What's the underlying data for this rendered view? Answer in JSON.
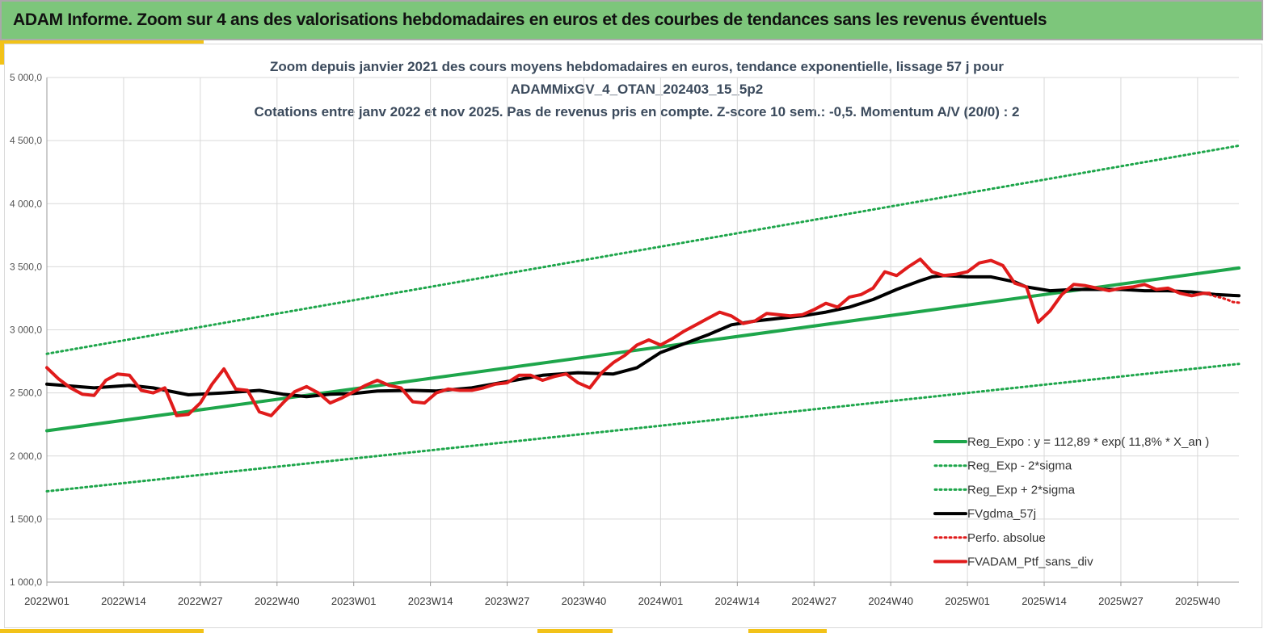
{
  "banner": {
    "title": "ADAM Informe. Zoom sur 4 ans des valorisations hebdomadaires en euros et des courbes de tendances sans les revenus éventuels",
    "background": "#7dc67b",
    "accent": "#f2c218"
  },
  "chart_data": {
    "type": "line",
    "title_lines": [
      "Zoom depuis janvier 2021 des cours moyens hebdomadaires  en euros, tendance exponentielle, lissage 57 j pour",
      "ADAMMixGV_4_OTAN_202403_15_5p2",
      "Cotations  entre janv 2022 et nov 2025. Pas de revenus pris en compte. Z-score 10 sem.: -0,5. Momentum A/V (20/0) : 2"
    ],
    "xlabel": "",
    "ylabel": "",
    "ylim": [
      1000,
      5000
    ],
    "yticks": [
      1000,
      1500,
      2000,
      2500,
      3000,
      3500,
      4000,
      4500,
      5000
    ],
    "ytick_labels": [
      "1 000,0",
      "1 500,0",
      "2 000,0",
      "2 500,0",
      "3 000,0",
      "3 500,0",
      "4 000,0",
      "4 500,0",
      "5 000,0"
    ],
    "x_range_weeks": [
      0,
      202
    ],
    "xtick_positions": [
      0,
      13,
      26,
      39,
      52,
      65,
      78,
      91,
      104,
      117,
      130,
      143,
      156,
      169,
      182,
      195
    ],
    "xtick_labels": [
      "2022W01",
      "2022W14",
      "2022W27",
      "2022W40",
      "2023W01",
      "2023W14",
      "2023W27",
      "2023W40",
      "2024W01",
      "2024W14",
      "2024W27",
      "2024W40",
      "2025W01",
      "2025W14",
      "2025W27",
      "2025W40"
    ],
    "grid": true,
    "legend_position": "bottom-right",
    "series": [
      {
        "name": "Reg_Expo : y = 112,89 * exp( 11,8% *  X_an )",
        "color": "#1ea64b",
        "style": "solid",
        "x": [
          0,
          202
        ],
        "y": [
          2200,
          3490
        ]
      },
      {
        "name": "Reg_Exp - 2*sigma",
        "color": "#1ea64b",
        "style": "dotted",
        "x": [
          0,
          202
        ],
        "y": [
          1720,
          2730
        ]
      },
      {
        "name": "Reg_Exp + 2*sigma",
        "color": "#1ea64b",
        "style": "dotted",
        "x": [
          0,
          202
        ],
        "y": [
          2810,
          4460
        ]
      },
      {
        "name": "FVgdma_57j",
        "color": "#000000",
        "style": "solid",
        "x": [
          0,
          8,
          14,
          18,
          24,
          30,
          36,
          40,
          44,
          48,
          52,
          56,
          62,
          66,
          72,
          78,
          84,
          90,
          96,
          100,
          104,
          108,
          112,
          116,
          120,
          124,
          128,
          132,
          136,
          140,
          144,
          148,
          150,
          152,
          156,
          160,
          164,
          166,
          170,
          174,
          178,
          182,
          186,
          190,
          194,
          198,
          202
        ],
        "y": [
          2570,
          2540,
          2560,
          2540,
          2485,
          2500,
          2520,
          2490,
          2470,
          2490,
          2495,
          2515,
          2520,
          2515,
          2540,
          2590,
          2640,
          2660,
          2650,
          2700,
          2820,
          2890,
          2960,
          3040,
          3070,
          3090,
          3110,
          3140,
          3180,
          3240,
          3320,
          3390,
          3420,
          3430,
          3420,
          3420,
          3380,
          3340,
          3310,
          3320,
          3320,
          3320,
          3310,
          3310,
          3300,
          3280,
          3270
        ]
      },
      {
        "name": "Perfo. absolue",
        "color": "#e01b1b",
        "style": "dotted",
        "x": [
          197,
          198,
          199,
          200,
          201,
          202
        ],
        "y": [
          3280,
          3265,
          3255,
          3240,
          3220,
          3215
        ]
      },
      {
        "name": "FVADAM_Ptf_sans_div",
        "color": "#e01b1b",
        "style": "solid",
        "x": [
          0,
          2,
          4,
          6,
          8,
          10,
          12,
          14,
          16,
          18,
          20,
          22,
          24,
          26,
          28,
          30,
          32,
          34,
          36,
          38,
          40,
          42,
          44,
          46,
          48,
          50,
          52,
          54,
          56,
          58,
          60,
          62,
          64,
          66,
          68,
          70,
          72,
          74,
          76,
          78,
          80,
          82,
          84,
          86,
          88,
          90,
          92,
          94,
          96,
          98,
          100,
          102,
          104,
          106,
          108,
          110,
          112,
          114,
          116,
          118,
          120,
          122,
          124,
          126,
          128,
          130,
          132,
          134,
          136,
          138,
          140,
          142,
          144,
          146,
          148,
          150,
          152,
          154,
          156,
          158,
          160,
          162,
          164,
          166,
          168,
          170,
          172,
          174,
          176,
          178,
          180,
          182,
          184,
          186,
          188,
          190,
          192,
          194,
          196,
          197
        ],
        "y": [
          2700,
          2610,
          2540,
          2490,
          2480,
          2600,
          2650,
          2640,
          2520,
          2500,
          2540,
          2320,
          2330,
          2420,
          2570,
          2690,
          2530,
          2520,
          2350,
          2320,
          2420,
          2510,
          2550,
          2500,
          2420,
          2460,
          2510,
          2560,
          2600,
          2560,
          2540,
          2430,
          2420,
          2500,
          2530,
          2520,
          2520,
          2540,
          2570,
          2580,
          2640,
          2640,
          2600,
          2630,
          2650,
          2580,
          2540,
          2660,
          2740,
          2800,
          2880,
          2920,
          2880,
          2930,
          2990,
          3040,
          3090,
          3140,
          3110,
          3050,
          3070,
          3130,
          3120,
          3110,
          3120,
          3160,
          3210,
          3180,
          3260,
          3280,
          3330,
          3460,
          3430,
          3500,
          3560,
          3460,
          3430,
          3440,
          3460,
          3530,
          3550,
          3510,
          3370,
          3340,
          3060,
          3150,
          3280,
          3360,
          3350,
          3330,
          3310,
          3330,
          3340,
          3360,
          3320,
          3330,
          3290,
          3270,
          3290,
          3290
        ]
      }
    ]
  }
}
